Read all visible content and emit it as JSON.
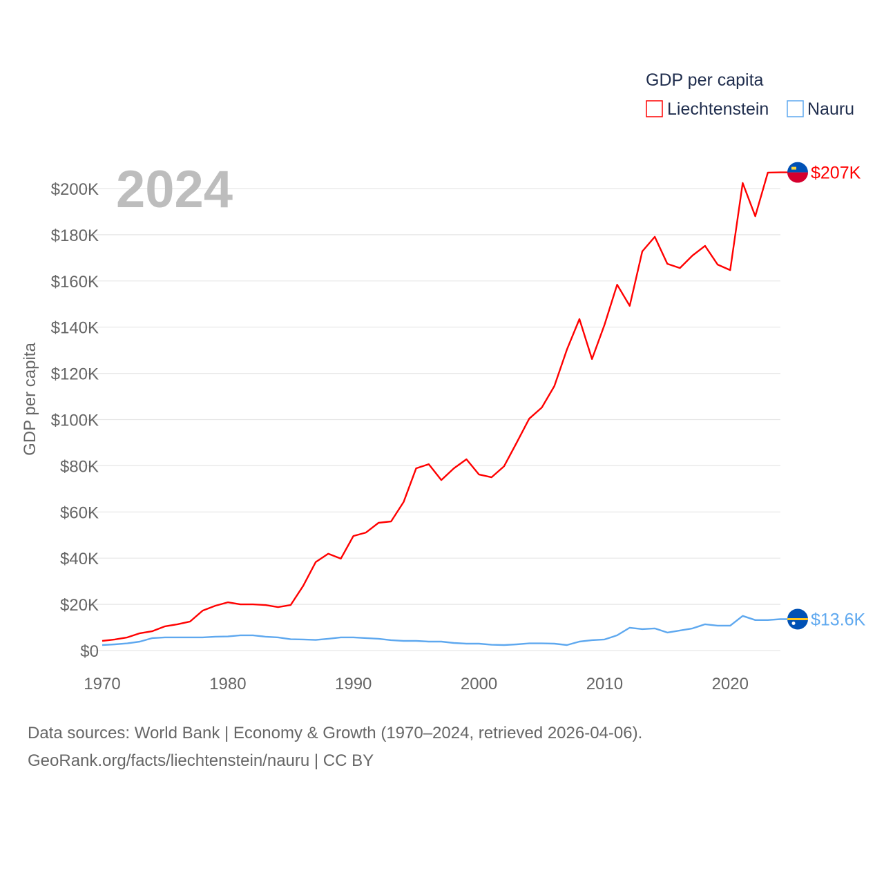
{
  "chart_data": {
    "type": "line",
    "title": "GDP per capita",
    "year_label": "2024",
    "ylabel": "GDP per capita",
    "xlabel": "",
    "xlim": [
      1970,
      2024
    ],
    "ylim": [
      0,
      200000
    ],
    "x_ticks": [
      1970,
      1980,
      1990,
      2000,
      2010,
      2020
    ],
    "x_tick_labels": [
      "1970",
      "1980",
      "1990",
      "2000",
      "2010",
      "2020"
    ],
    "y_ticks": [
      0,
      20000,
      40000,
      60000,
      80000,
      100000,
      120000,
      140000,
      160000,
      180000,
      200000
    ],
    "y_tick_labels": [
      "$0",
      "$20K",
      "$40K",
      "$60K",
      "$80K",
      "$100K",
      "$120K",
      "$140K",
      "$160K",
      "$180K",
      "$200K"
    ],
    "grid": true,
    "legend_position": "top-right",
    "x": [
      1970,
      1971,
      1972,
      1973,
      1974,
      1975,
      1976,
      1977,
      1978,
      1979,
      1980,
      1981,
      1982,
      1983,
      1984,
      1985,
      1986,
      1987,
      1988,
      1989,
      1990,
      1991,
      1992,
      1993,
      1994,
      1995,
      1996,
      1997,
      1998,
      1999,
      2000,
      2001,
      2002,
      2003,
      2004,
      2005,
      2006,
      2007,
      2008,
      2009,
      2010,
      2011,
      2012,
      2013,
      2014,
      2015,
      2016,
      2017,
      2018,
      2019,
      2020,
      2021,
      2022,
      2023,
      2024
    ],
    "series": [
      {
        "name": "Liechtenstein",
        "color": "#ff0000",
        "end_label": "$207K",
        "flag": "liechtenstein-flag",
        "values": [
          4200,
          4800,
          5700,
          7500,
          8400,
          10500,
          11400,
          12600,
          17300,
          19400,
          20900,
          20000,
          20000,
          19700,
          18800,
          19700,
          28000,
          38300,
          41900,
          39800,
          49600,
          51100,
          55300,
          55900,
          64300,
          78900,
          80700,
          73800,
          78900,
          82800,
          76200,
          75000,
          79800,
          90000,
          100400,
          105200,
          114500,
          130300,
          143500,
          126200,
          141100,
          158400,
          149200,
          172800,
          179100,
          167400,
          165600,
          171000,
          175200,
          167100,
          164700,
          202400,
          188000,
          206900,
          207000
        ]
      },
      {
        "name": "Nauru",
        "color": "#5ea8ef",
        "end_label": "$13.6K",
        "flag": "nauru-flag",
        "values": [
          2400,
          2700,
          3100,
          3900,
          5400,
          5700,
          5700,
          5700,
          5700,
          6000,
          6100,
          6600,
          6600,
          6000,
          5700,
          4900,
          4800,
          4600,
          5100,
          5700,
          5700,
          5400,
          5100,
          4500,
          4200,
          4200,
          3900,
          3900,
          3300,
          3000,
          3000,
          2500,
          2400,
          2700,
          3100,
          3100,
          3000,
          2400,
          3900,
          4500,
          4800,
          6600,
          9900,
          9300,
          9600,
          7800,
          8700,
          9600,
          11400,
          10800,
          10800,
          15000,
          13200,
          13200,
          13600
        ]
      }
    ]
  },
  "footer": {
    "line1": "Data sources: World Bank | Economy & Growth (1970–2024, retrieved 2026-04-06).",
    "line2": "GeoRank.org/facts/liechtenstein/nauru | CC BY"
  }
}
